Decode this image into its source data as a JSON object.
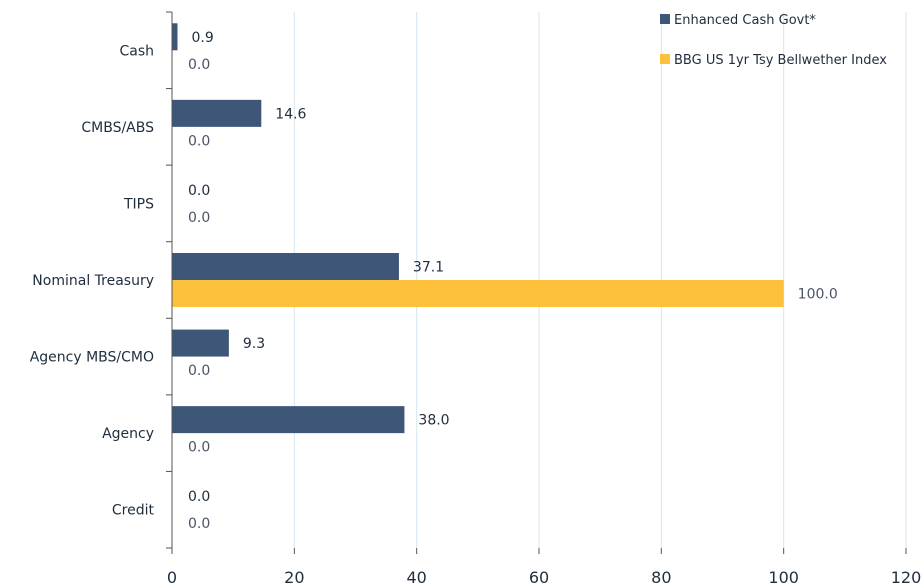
{
  "chart_data": {
    "type": "bar",
    "orientation": "horizontal",
    "categories": [
      "Cash",
      "CMBS/ABS",
      "TIPS",
      "Nominal Treasury",
      "Agency MBS/CMO",
      "Agency",
      "Credit"
    ],
    "series": [
      {
        "name": "Enhanced Cash Govt*",
        "color": "#3e5778",
        "values": [
          0.9,
          14.6,
          0.0,
          37.1,
          9.3,
          38.0,
          0.0
        ],
        "labels": [
          "0.9",
          "14.6",
          "0.0",
          "37.1",
          "9.3",
          "38.0",
          "0.0"
        ]
      },
      {
        "name": "BBG US 1yr Tsy Bellwether Index",
        "color": "#fdc03a",
        "values": [
          0.0,
          0.0,
          0.0,
          100.0,
          0.0,
          0.0,
          0.0
        ],
        "labels": [
          "0.0",
          "0.0",
          "0.0",
          "100.0",
          "0.0",
          "0.0",
          "0.0"
        ]
      }
    ],
    "xlim": [
      0,
      120
    ],
    "xticks": [
      "0",
      "20",
      "40",
      "60",
      "80",
      "100",
      "120"
    ],
    "xgrid": true,
    "legend_position": "top-right",
    "gridline_color": "#d6e6f2"
  }
}
